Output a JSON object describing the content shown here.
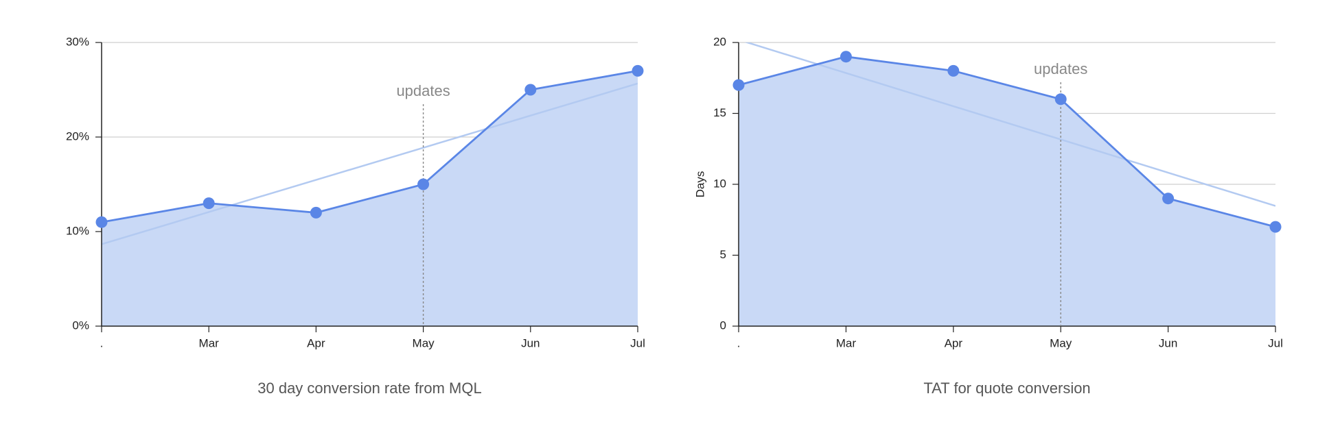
{
  "chart_data": [
    {
      "type": "area",
      "title": "30 day conversion rate from MQL",
      "categories": [
        ".",
        "Mar",
        "Apr",
        "May",
        "Jun",
        "Jul"
      ],
      "values": [
        11,
        13,
        12,
        15,
        25,
        27
      ],
      "color": "#5a86e6",
      "fill": "#c9d9f6",
      "trendline": "linear",
      "trend_color": "#b3caf1",
      "ylim": [
        0,
        30
      ],
      "yticks": [
        {
          "value": 0,
          "label": "0%"
        },
        {
          "value": 10,
          "label": "10%"
        },
        {
          "value": 20,
          "label": "20%"
        },
        {
          "value": 30,
          "label": "30%"
        }
      ],
      "grid": true,
      "annotation": {
        "x": "May",
        "text": "updates"
      }
    },
    {
      "type": "area",
      "title": "TAT for quote conversion",
      "ylabel": "Days",
      "categories": [
        ".",
        "Mar",
        "Apr",
        "May",
        "Jun",
        "Jul"
      ],
      "values": [
        17,
        19,
        18,
        16,
        9,
        7
      ],
      "color": "#5a86e6",
      "fill": "#c9d9f6",
      "trendline": "linear",
      "trend_color": "#b3caf1",
      "ylim": [
        0,
        20
      ],
      "yticks": [
        0,
        5,
        10,
        15,
        20
      ],
      "grid": true,
      "annotation": {
        "x": "May",
        "text": "updates"
      }
    }
  ]
}
